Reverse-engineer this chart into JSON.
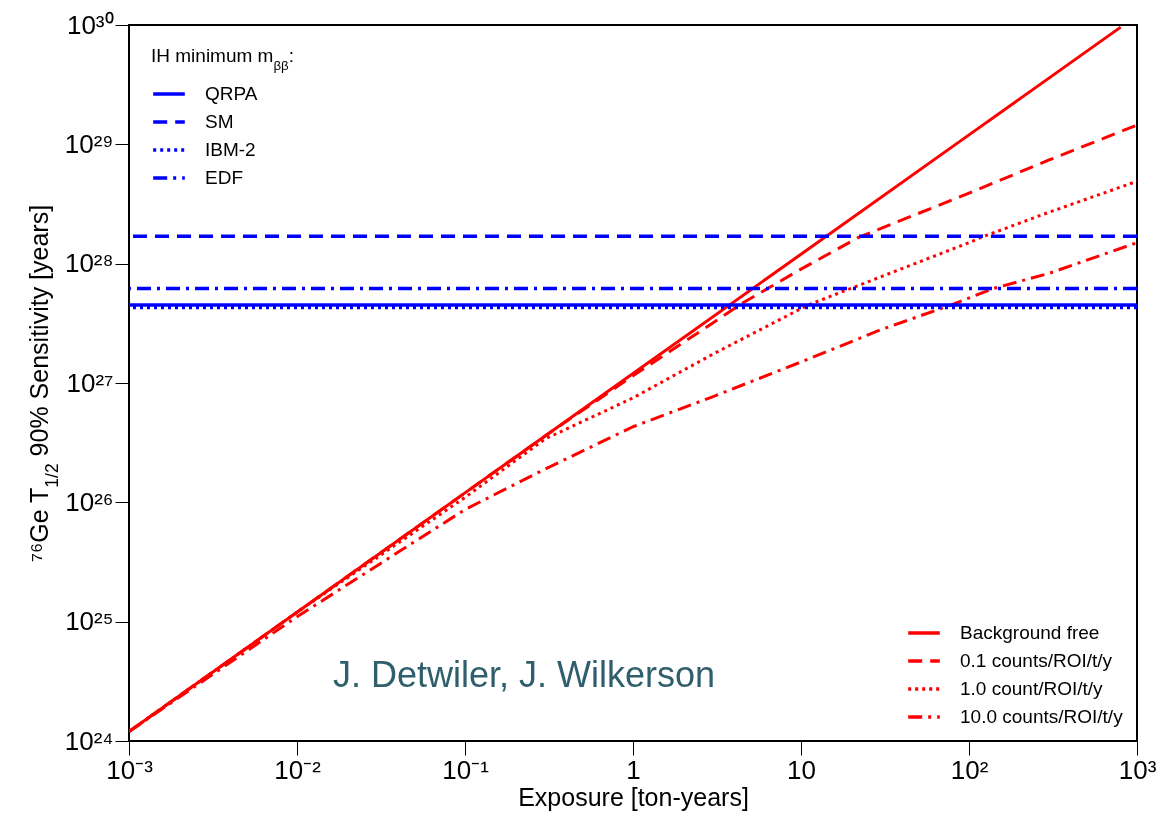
{
  "chart_data": {
    "type": "line",
    "xlabel": "Exposure [ton-years]",
    "ylabel": "⁷⁶Ge T$_{1/2}$ 90% Sensitivity [years]",
    "legend_title": "IH minimum m$_{ββ}$:",
    "log": "xy",
    "grid": false,
    "legend": "bottom right",
    "xlim": [
      0.001,
      1000
    ],
    "xticks": [
      {
        "value": 0.001,
        "label": "10⁻³"
      },
      {
        "value": 0.01,
        "label": "10⁻²"
      },
      {
        "value": 0.1,
        "label": "10⁻¹"
      },
      1,
      10,
      {
        "value": 100,
        "label": "10²"
      },
      {
        "value": 1000,
        "label": "10³"
      }
    ],
    "ylim": [
      1e+24,
      1e+30
    ],
    "yticks": [
      {
        "value": 1e+24,
        "label": "10²⁴"
      },
      {
        "value": 1e+25,
        "label": "10²⁵"
      },
      {
        "value": 1e+26,
        "label": "10²⁶"
      },
      {
        "value": 1e+27,
        "label": "10²⁷"
      },
      {
        "value": 1e+28,
        "label": "10²⁸"
      },
      {
        "value": 1e+29,
        "label": "10²⁹"
      },
      {
        "value": 1e+30,
        "label": "10³⁰"
      }
    ],
    "series": [
      {
        "name": "Background free",
        "color": "#ff0000",
        "line_style": "solid",
        "x": [
          0.001,
          0.01,
          0.1,
          1,
          10,
          100,
          800
        ],
        "values": [
          1.2e+24,
          1.2e+25,
          1.2e+26,
          1.2e+27,
          1.2e+28,
          1.2e+29,
          9.6e+29
        ]
      },
      {
        "name": "0.1 counts/ROI/t/y",
        "color": "#ff0000",
        "line_style": "dashed",
        "x": [
          0.001,
          0.01,
          0.1,
          0.3,
          1,
          3,
          4.4,
          10,
          22,
          100,
          300,
          1000
        ],
        "values": [
          1.2e+24,
          1.2e+25,
          1.2e+26,
          3.6e+26,
          1.15e+27,
          3.2e+27,
          4.6e+27,
          9e+27,
          1.66e+28,
          3.9e+28,
          7.4e+28,
          1.45e+29
        ]
      },
      {
        "name": "1.0 count/ROI/t/y",
        "color": "#ff0000",
        "line_style": "dotted",
        "x": [
          0.001,
          0.01,
          0.1,
          0.3,
          1,
          3,
          11,
          100,
          118,
          300,
          1000
        ],
        "values": [
          1.2e+24,
          1.2e+25,
          1.1e+26,
          3.4e+26,
          7.5e+26,
          1.75e+27,
          4.5e+27,
          1.5e+28,
          1.66e+28,
          2.7e+28,
          4.9e+28
        ]
      },
      {
        "name": "10.0 counts/ROI/t/y",
        "color": "#ff0000",
        "line_style": "dashdot",
        "x": [
          0.001,
          0.01,
          0.1,
          0.3,
          1,
          3,
          10,
          30,
          78,
          140,
          300,
          1000
        ],
        "values": [
          1.2e+24,
          1.1e+25,
          8.7e+25,
          1.9e+26,
          4.3e+26,
          7.7e+26,
          1.5e+27,
          2.8e+27,
          4.5e+27,
          6.2e+27,
          8.3e+27,
          1.5e+28
        ]
      }
    ],
    "ref_lines": [
      {
        "axis": "y",
        "value": 4.5e+27,
        "label": "QRPA",
        "color": "#0000ff",
        "line_style": "solid"
      },
      {
        "axis": "y",
        "value": 1.7e+28,
        "label": "SM",
        "color": "#0000ff",
        "line_style": "dashed"
      },
      {
        "axis": "y",
        "value": 4.3e+27,
        "label": "IBM-2",
        "color": "#0000ff",
        "line_style": "dotted"
      },
      {
        "axis": "y",
        "value": 6.2e+27,
        "label": "EDF",
        "color": "#0000ff",
        "line_style": "dashdot"
      }
    ],
    "annotations": [
      "J. Detwiler, J. Wilkerson"
    ]
  }
}
